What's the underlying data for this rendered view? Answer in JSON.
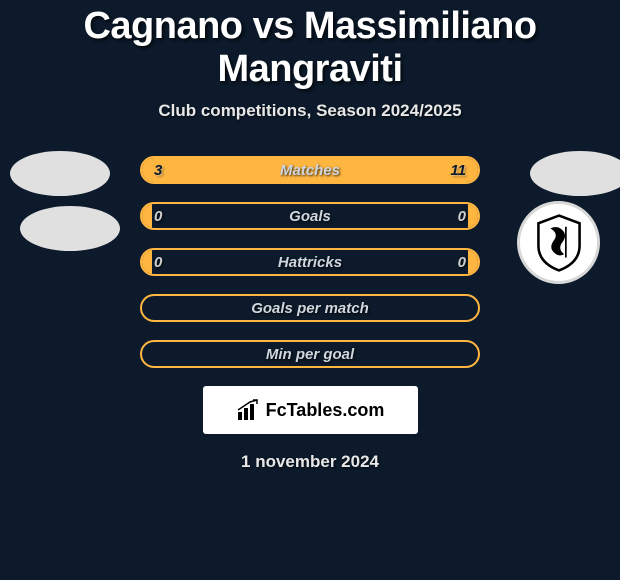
{
  "title": "Cagnano vs Massimiliano Mangraviti",
  "subtitle": "Club competitions, Season 2024/2025",
  "datestamp": "1 november 2024",
  "colors": {
    "background": "#0c1a2b",
    "bar_border": "#ffb640",
    "bar_fill": "#ffb640",
    "text_light": "#e8e8e8",
    "label_color": "#cfd6de"
  },
  "rows": [
    {
      "label": "Matches",
      "left": "3",
      "right": "11",
      "left_pct": 21,
      "right_pct": 79,
      "show_left": true,
      "show_right": true
    },
    {
      "label": "Goals",
      "left": "0",
      "right": "0",
      "left_pct": 3,
      "right_pct": 3,
      "show_left": true,
      "show_right": true
    },
    {
      "label": "Hattricks",
      "left": "0",
      "right": "0",
      "left_pct": 3,
      "right_pct": 3,
      "show_left": true,
      "show_right": true
    },
    {
      "label": "Goals per match",
      "left": "",
      "right": "",
      "left_pct": 0,
      "right_pct": 0,
      "show_left": false,
      "show_right": false
    },
    {
      "label": "Min per goal",
      "left": "",
      "right": "",
      "left_pct": 0,
      "right_pct": 0,
      "show_left": false,
      "show_right": false
    }
  ],
  "watermark": "FcTables.com"
}
